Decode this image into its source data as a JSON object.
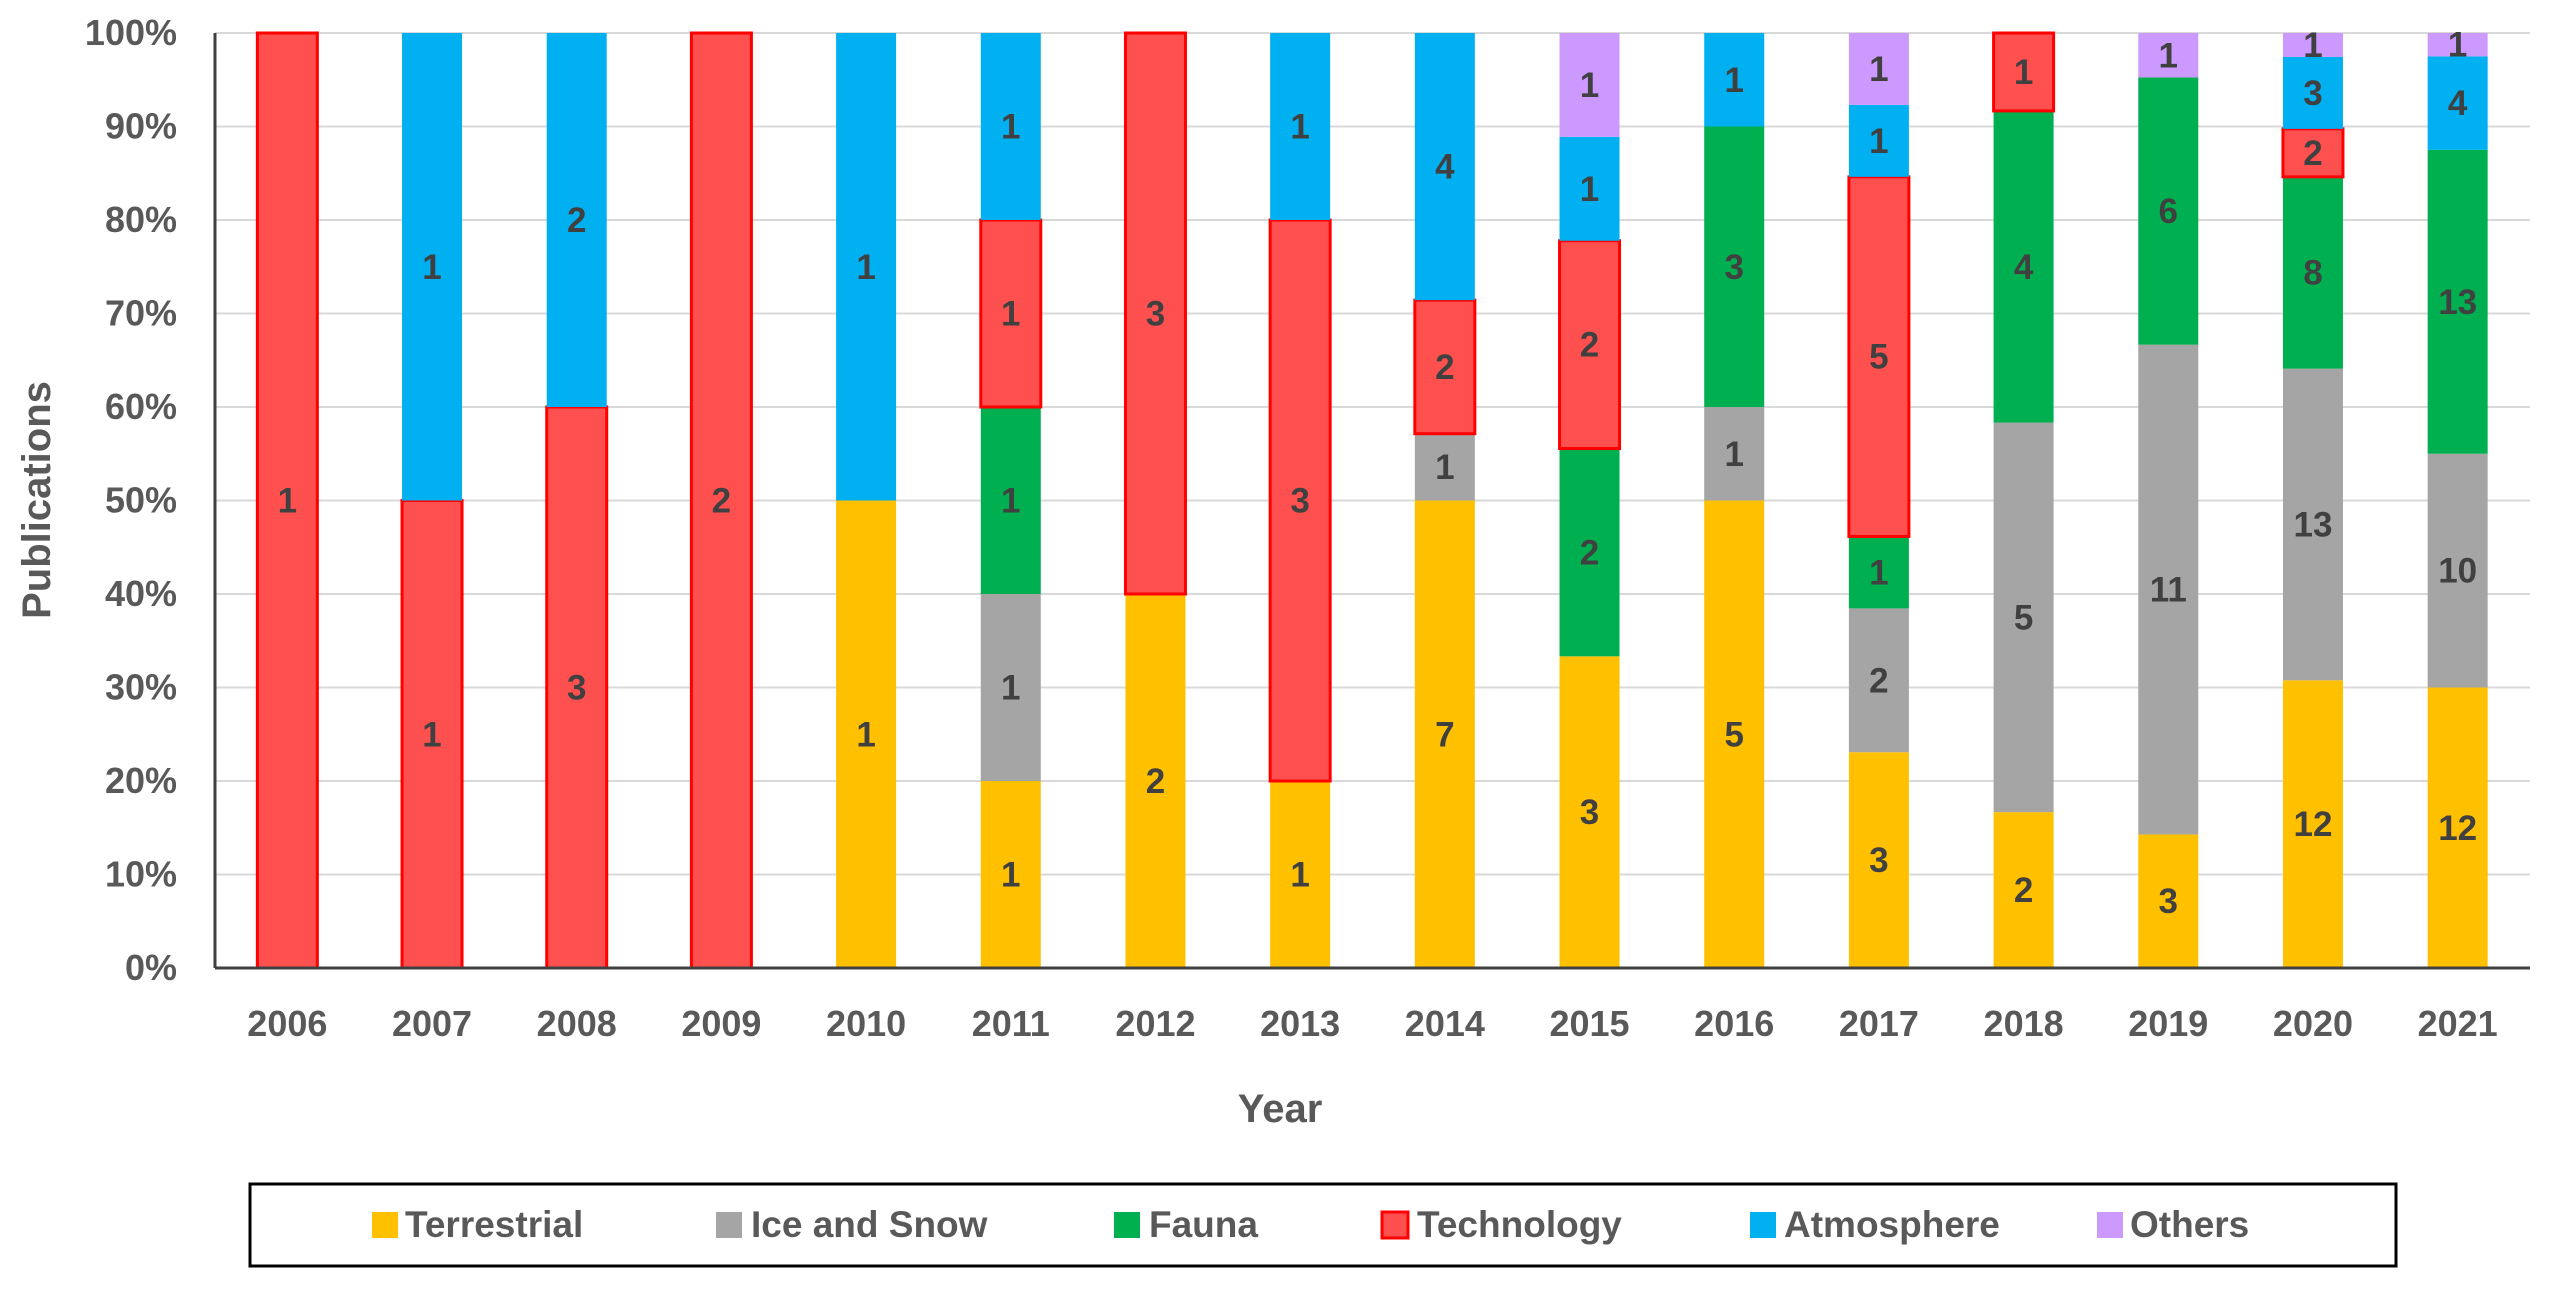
{
  "chart_data": {
    "type": "bar",
    "stacked": "percent",
    "categories": [
      "2006",
      "2007",
      "2008",
      "2009",
      "2010",
      "2011",
      "2012",
      "2013",
      "2014",
      "2015",
      "2016",
      "2017",
      "2018",
      "2019",
      "2020",
      "2021"
    ],
    "series": [
      {
        "name": "Terrestrial",
        "color": "#FFC000",
        "values": [
          0,
          0,
          0,
          0,
          1,
          1,
          2,
          1,
          7,
          3,
          5,
          3,
          2,
          3,
          12,
          12
        ]
      },
      {
        "name": "Ice and Snow",
        "color": "#A5A5A5",
        "values": [
          0,
          0,
          0,
          0,
          0,
          1,
          0,
          0,
          1,
          0,
          1,
          2,
          5,
          11,
          13,
          10
        ]
      },
      {
        "name": "Fauna",
        "color": "#00B050",
        "values": [
          0,
          0,
          0,
          0,
          0,
          1,
          0,
          0,
          0,
          2,
          3,
          1,
          4,
          6,
          8,
          13
        ]
      },
      {
        "name": "Technology",
        "color": "#FF5050",
        "border": "#FF0000",
        "values": [
          1,
          1,
          3,
          2,
          0,
          1,
          3,
          3,
          2,
          2,
          0,
          5,
          1,
          0,
          2,
          0
        ]
      },
      {
        "name": "Atmosphere",
        "color": "#00B0F0",
        "values": [
          0,
          1,
          2,
          0,
          1,
          1,
          0,
          1,
          4,
          1,
          1,
          1,
          0,
          0,
          3,
          4
        ]
      },
      {
        "name": "Others",
        "color": "#CC99FF",
        "values": [
          0,
          0,
          0,
          0,
          0,
          0,
          0,
          0,
          0,
          1,
          0,
          1,
          0,
          1,
          1,
          1
        ]
      }
    ],
    "xlabel": "Year",
    "ylabel": "Publications",
    "ylim": [
      0,
      100
    ],
    "yticks": [
      "0%",
      "10%",
      "20%",
      "30%",
      "40%",
      "50%",
      "60%",
      "70%",
      "80%",
      "90%",
      "100%"
    ],
    "grid": true,
    "legend_position": "bottom"
  }
}
